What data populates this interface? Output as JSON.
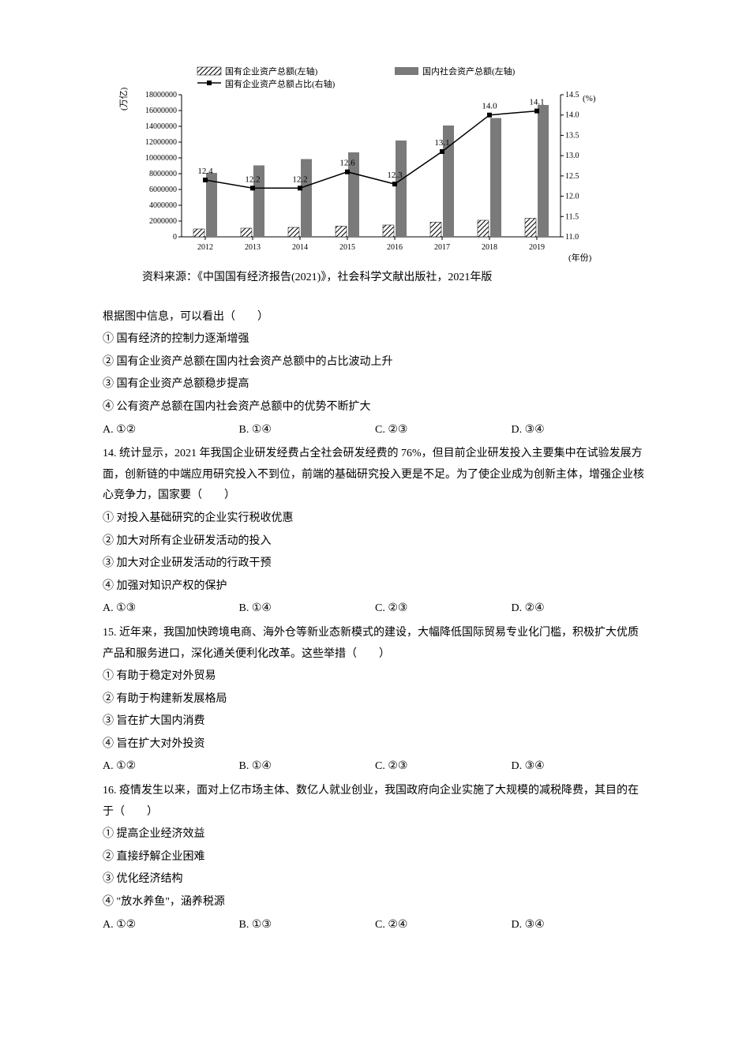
{
  "chart": {
    "type": "combo-bar-line",
    "legend": {
      "series1": "国有企业资产总额(左轴)",
      "series2": "国内社会资产总额(左轴)",
      "series3": "国有企业资产总额占比(右轴)"
    },
    "source": "资料来源：《中国国有经济报告(2021)》，社会科学文献出版社，2021年版",
    "xaxis": {
      "categories": [
        "2012",
        "2013",
        "2014",
        "2015",
        "2016",
        "2017",
        "2018",
        "2019"
      ],
      "label": "(年份)"
    },
    "yaxis_left": {
      "label": "(万亿)",
      "ticks": [
        "0",
        "2000000",
        "4000000",
        "6000000",
        "8000000",
        "10000000",
        "12000000",
        "14000000",
        "16000000",
        "18000000"
      ]
    },
    "yaxis_right": {
      "label": "(%)",
      "ticks": [
        "11.0",
        "11.5",
        "12.0",
        "12.5",
        "13.0",
        "13.5",
        "14.0",
        "14.5"
      ]
    },
    "line_values": [
      "12.4",
      "12.2",
      "12.2",
      "12.6",
      "12.3",
      "13.1",
      "14.0",
      "14.1"
    ],
    "line_data_points": [
      12.4,
      12.2,
      12.2,
      12.6,
      12.3,
      13.1,
      14.0,
      14.1
    ],
    "bar_series1_heights": [
      1000000,
      1100000,
      1200000,
      1350000,
      1500000,
      1850000,
      2100000,
      2350000
    ],
    "bar_series2_heights": [
      8100000,
      9050000,
      9850000,
      10700000,
      12200000,
      14100000,
      15050000,
      16700000
    ],
    "colors": {
      "hatched_bar": "#000000",
      "solid_bar": "#7a7a7a",
      "line": "#000000",
      "axis": "#000000",
      "text": "#000000"
    },
    "font_size_axis": 10,
    "font_size_label": 11
  },
  "q_intro": {
    "prompt": "根据图中信息，可以看出（　　）",
    "stmt1": "① 国有经济的控制力逐渐增强",
    "stmt2": "② 国有企业资产总额在国内社会资产总额中的占比波动上升",
    "stmt3": "③ 国有企业资产总额稳步提高",
    "stmt4": "④ 公有资产总额在国内社会资产总额中的优势不断扩大",
    "optA": "A.  ①②",
    "optB": "B.  ①④",
    "optC": "C.  ②③",
    "optD": "D.  ③④"
  },
  "q14": {
    "text": "14. 统计显示，2021 年我国企业研发经费占全社会研发经费的 76%，但目前企业研发投入主要集中在试验发展方面，创新链的中端应用研究投入不到位，前端的基础研究投入更是不足。为了使企业成为创新主体，增强企业核心竞争力，国家要（　　）",
    "stmt1": "① 对投入基础研究的企业实行税收优惠",
    "stmt2": "② 加大对所有企业研发活动的投入",
    "stmt3": "③ 加大对企业研发活动的行政干预",
    "stmt4": "④ 加强对知识产权的保护",
    "optA": "A.  ①③",
    "optB": "B.  ①④",
    "optC": "C.  ②③",
    "optD": "D.  ②④"
  },
  "q15": {
    "text": "15. 近年来，我国加快跨境电商、海外仓等新业态新模式的建设，大幅降低国际贸易专业化门槛，积极扩大优质产品和服务进口，深化通关便利化改革。这些举措（　　）",
    "stmt1": "① 有助于稳定对外贸易",
    "stmt2": "② 有助于构建新发展格局",
    "stmt3": "③ 旨在扩大国内消费",
    "stmt4": "④ 旨在扩大对外投资",
    "optA": "A.  ①②",
    "optB": "B.  ①④",
    "optC": "C.  ②③",
    "optD": "D.  ③④"
  },
  "q16": {
    "text": "16. 疫情发生以来，面对上亿市场主体、数亿人就业创业，我国政府向企业实施了大规模的减税降费，其目的在于（　　）",
    "stmt1": "① 提高企业经济效益",
    "stmt2": "② 直接纾解企业困难",
    "stmt3": "③ 优化经济结构",
    "stmt4": "④ \"放水养鱼\"，涵养税源",
    "optA": "A.  ①②",
    "optB": "B.  ①③",
    "optC": "C.  ②④",
    "optD": "D.  ③④"
  }
}
